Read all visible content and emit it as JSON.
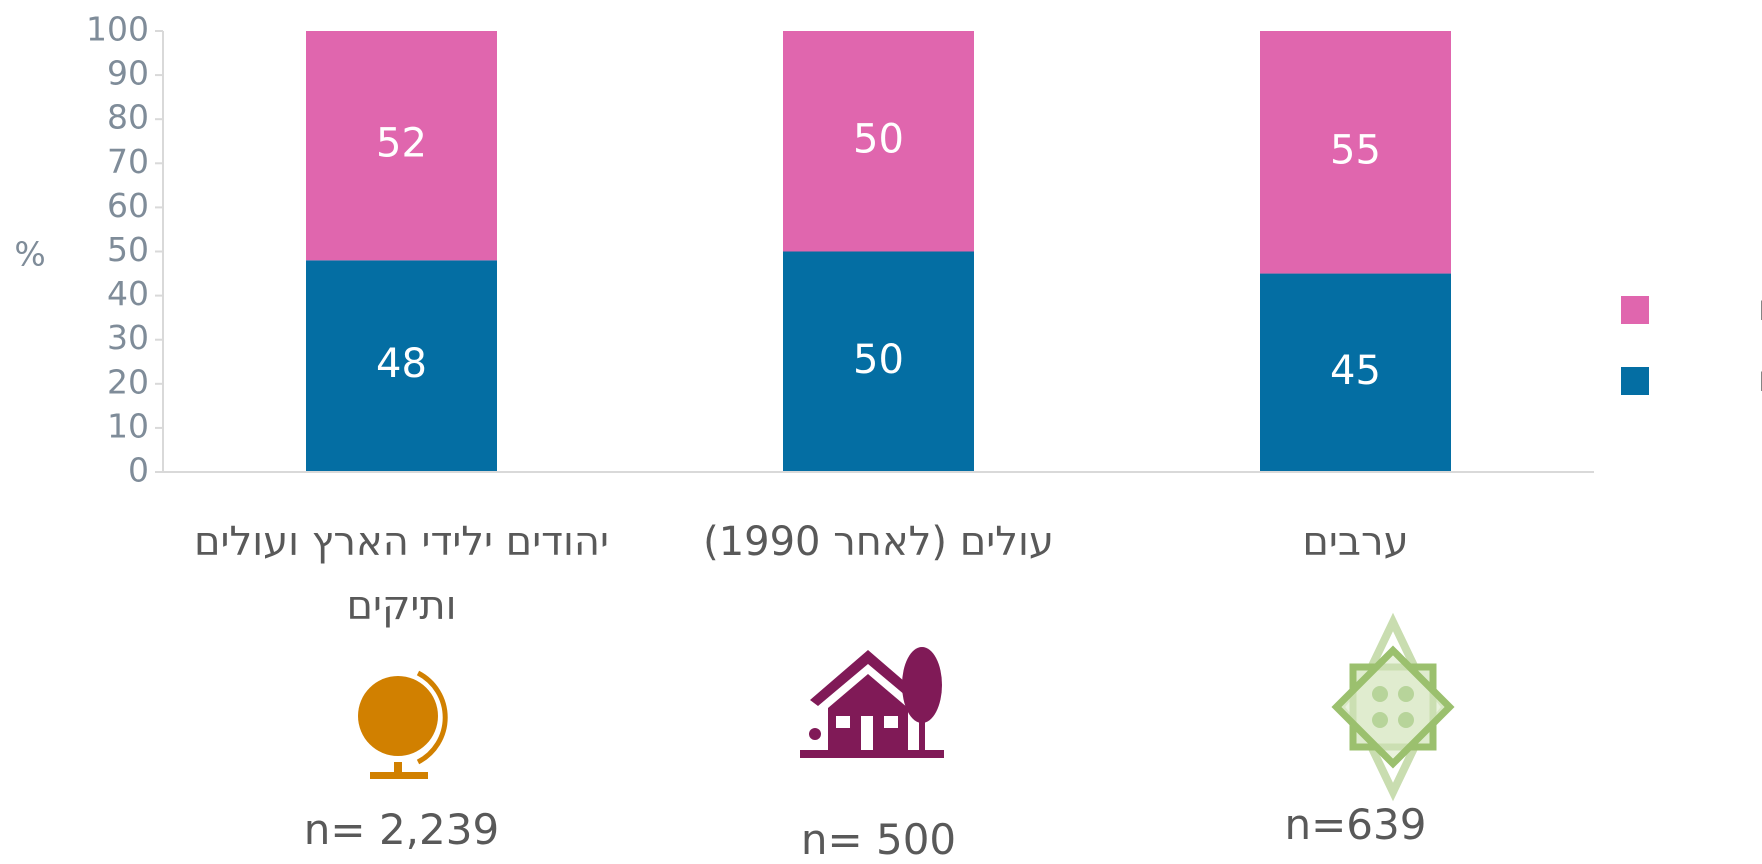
{
  "chart_data": {
    "type": "stacked_bar",
    "y_label": "%",
    "categories": [
      "יהודים ילידי הארץ ועולים ותיקים",
      "עולים (לאחר 1990)",
      "ערבים"
    ],
    "sample_sizes": [
      "n= 2,239",
      "n= 500",
      "n=639"
    ],
    "series": [
      {
        "name": "גברים",
        "color": "#046ea3",
        "values": [
          48,
          50,
          45
        ]
      },
      {
        "name": "נשים",
        "color": "#e066ae",
        "values": [
          52,
          50,
          55
        ]
      }
    ],
    "ylim": [
      0,
      100
    ],
    "yticks": [
      0,
      10,
      20,
      30,
      40,
      50,
      60,
      70,
      80,
      90,
      100
    ],
    "legend": "right"
  }
}
